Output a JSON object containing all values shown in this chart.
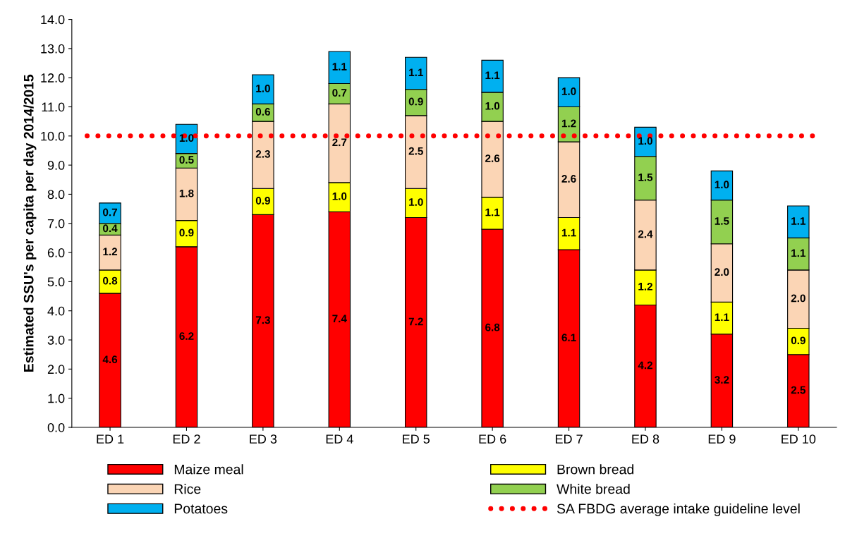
{
  "chart_data": {
    "type": "bar",
    "stacked": true,
    "ylabel": "Estimated SSU's per capita per day 2014/2015",
    "categories": [
      "ED 1",
      "ED 2",
      "ED 3",
      "ED 4",
      "ED 5",
      "ED 6",
      "ED 7",
      "ED 8",
      "ED 9",
      "ED 10"
    ],
    "series": [
      {
        "name": "Maize meal",
        "color": "#ff0000",
        "values": [
          4.6,
          6.2,
          7.3,
          7.4,
          7.2,
          6.8,
          6.1,
          4.2,
          3.2,
          2.5
        ],
        "value_labels": [
          "4.6",
          "6.2",
          "7.3",
          "7.4",
          "7.2",
          "6.8",
          "6.1",
          "4.2",
          "3.2",
          "2.5"
        ]
      },
      {
        "name": "Brown bread",
        "color": "#ffff00",
        "values": [
          0.8,
          0.9,
          0.9,
          1.0,
          1.0,
          1.1,
          1.1,
          1.2,
          1.1,
          0.9
        ],
        "value_labels": [
          "0.8",
          "0.9",
          "0.9",
          "1.0",
          "1.0",
          "1.1",
          "1.1",
          "1.2",
          "1.1",
          "0.9"
        ]
      },
      {
        "name": "Rice",
        "color": "#fbd5b5",
        "values": [
          1.2,
          1.8,
          2.3,
          2.7,
          2.5,
          2.6,
          2.6,
          2.4,
          2.0,
          2.0
        ],
        "value_labels": [
          "1.2",
          "1.8",
          "2.3",
          "2.7",
          "2.5",
          "2.6",
          "2.6",
          "2.4",
          "2.0",
          "2.0"
        ]
      },
      {
        "name": "White bread",
        "color": "#92d050",
        "values": [
          0.4,
          0.5,
          0.6,
          0.7,
          0.9,
          1.0,
          1.2,
          1.5,
          1.5,
          1.1
        ],
        "value_labels": [
          "0.4",
          "0.5",
          "0.6",
          "0.7",
          "0.9",
          "1.0",
          "1.2",
          "1.5",
          "1.5",
          "1.1"
        ]
      },
      {
        "name": "Potatoes",
        "color": "#00b0f0",
        "values": [
          0.7,
          1.0,
          1.0,
          1.1,
          1.1,
          1.1,
          1.0,
          1.0,
          1.0,
          1.1
        ],
        "value_labels": [
          "0.7",
          "1.0",
          "1.0",
          "1.1",
          "1.1",
          "1.1",
          "1.0",
          "1.0",
          "1.0",
          "1.1"
        ]
      }
    ],
    "ref_lines": [
      {
        "axis": "y",
        "value": 10,
        "label": "SA FBDG average intake guideline level",
        "color": "#ff0000",
        "line_style": "dotted"
      }
    ],
    "ylim": [
      0,
      14
    ],
    "yticks": [
      {
        "value": 0,
        "label": "0.0"
      },
      {
        "value": 1,
        "label": "1.0"
      },
      {
        "value": 2,
        "label": "2.0"
      },
      {
        "value": 3,
        "label": "3.0"
      },
      {
        "value": 4,
        "label": "4.0"
      },
      {
        "value": 5,
        "label": "5.0"
      },
      {
        "value": 6,
        "label": "6.0"
      },
      {
        "value": 7,
        "label": "7.0"
      },
      {
        "value": 8,
        "label": "8.0"
      },
      {
        "value": 9,
        "label": "9.0"
      },
      {
        "value": 10,
        "label": "10.0"
      },
      {
        "value": 11,
        "label": "11.0"
      },
      {
        "value": 12,
        "label": "12.0"
      },
      {
        "value": 13,
        "label": "13.0"
      },
      {
        "value": 14,
        "label": "14.0"
      }
    ],
    "grid": false,
    "legend": "bottom"
  }
}
